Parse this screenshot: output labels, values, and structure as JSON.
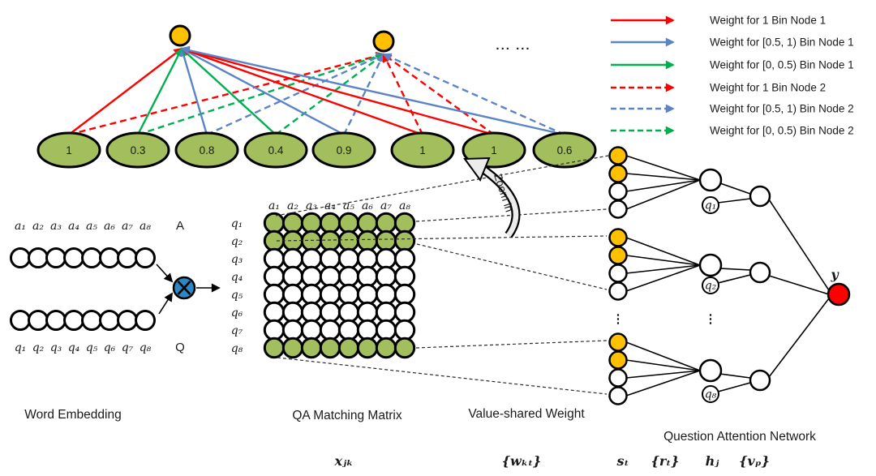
{
  "colors": {
    "red": "#FF0000",
    "blue": "#5B84C6",
    "green": "#00B050",
    "node_orange": "#FFC000",
    "node_green": "#A3BE5C",
    "multiply_blue": "#2E86C5",
    "output_red": "#FF0000",
    "zoom_arrow_fill": "#ECECEC",
    "edge_black": "#000000",
    "connector_gray": "#2b2b2b"
  },
  "top_graph": {
    "bin_values": [
      "1",
      "0.3",
      "0.8",
      "0.4",
      "0.9",
      "1",
      "1",
      "0.6"
    ],
    "dots_label": "... ..."
  },
  "legend": {
    "items": [
      {
        "label": "Weight for 1 Bin Node 1",
        "color": "red",
        "style": "solid"
      },
      {
        "label": "Weight for [0.5, 1) Bin Node 1",
        "color": "blue",
        "style": "solid"
      },
      {
        "label": "Weight for [0, 0.5)  Bin Node 1",
        "color": "green",
        "style": "solid"
      },
      {
        "label": "Weight for 1  Bin Node 2",
        "color": "red",
        "style": "dashed"
      },
      {
        "label": "Weight for [0.5, 1) Bin Node 2",
        "color": "blue",
        "style": "dashed"
      },
      {
        "label": "Weight for [0, 0.5) Bin Node 2",
        "color": "green",
        "style": "dashed"
      }
    ]
  },
  "word_embedding": {
    "caption": "Word Embedding",
    "answer_tokens": [
      "a₁",
      "a₂",
      "a₃",
      "a₄",
      "a₅",
      "a₆",
      "a₇",
      "a₈"
    ],
    "answer_tag": "A",
    "question_tokens": [
      "q₁",
      "q₂",
      "q₃",
      "q₄",
      "q₅",
      "q₆",
      "q₇",
      "q₈"
    ],
    "question_tag": "Q"
  },
  "matrix": {
    "caption": "QA Matching Matrix",
    "col_labels": [
      "a₁",
      "a₂",
      "a₃",
      "a₄",
      "a₅",
      "a₆",
      "a₇",
      "a₈"
    ],
    "row_labels": [
      "q₁",
      "q₂",
      "q₃",
      "q₄",
      "q₅",
      "q₆",
      "q₇",
      "q₈"
    ],
    "green_rows": [
      1,
      2,
      8
    ],
    "symbol": "xⱼₖ"
  },
  "value_shared_weight": {
    "caption": "Value-shared Weight",
    "symbol": "{wₖₜ}",
    "zoom_label": "Zoom in",
    "ellipsis": "⋮"
  },
  "attention": {
    "caption": "Question Attention Network",
    "s_symbol": "sₜ",
    "r_symbol": "{rₜ}",
    "h_symbol": "hⱼ",
    "v_symbol": "{vₚ}",
    "node_labels": [
      "q₁",
      "q₂",
      "q₈"
    ],
    "output_label": "y",
    "ellipsis": "⋮"
  }
}
